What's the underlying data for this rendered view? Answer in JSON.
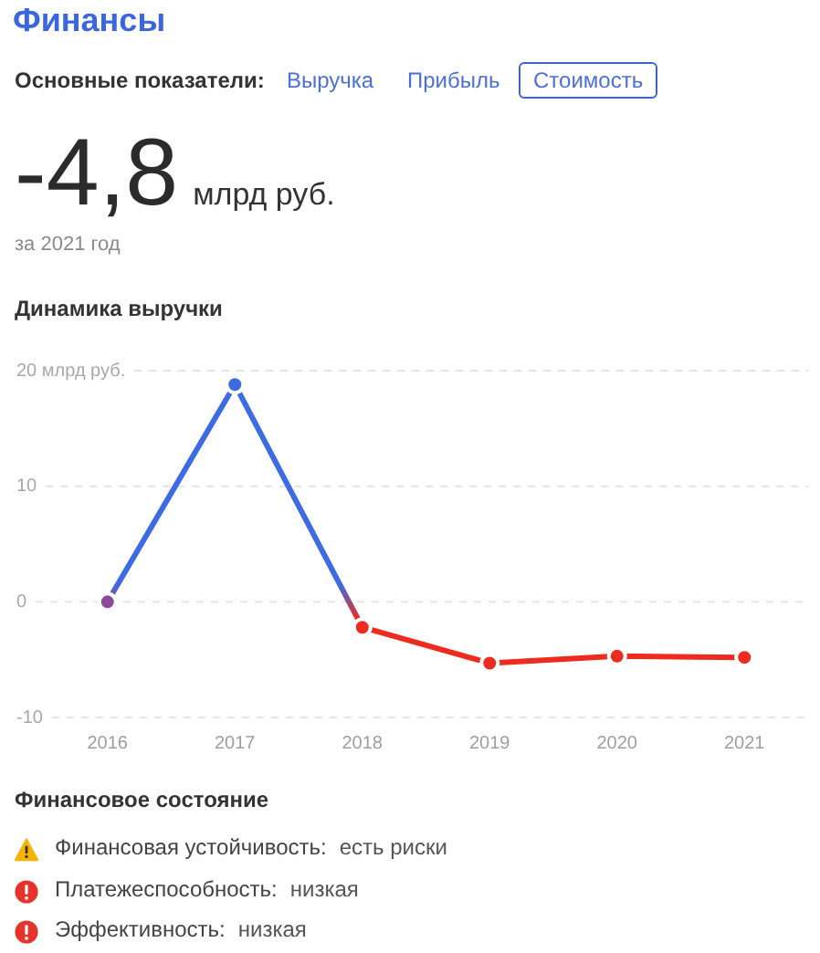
{
  "chart_data": {
    "type": "line",
    "title": "Динамика выручки",
    "categories": [
      "2016",
      "2017",
      "2018",
      "2019",
      "2020",
      "2021"
    ],
    "values": [
      0,
      18.8,
      -2.2,
      -5.3,
      -4.7,
      -4.8
    ],
    "colors": [
      "#8b4a9c",
      "#3d6be3",
      "#ee2b1f",
      "#ee2b1f",
      "#ee2b1f",
      "#ee2b1f"
    ],
    "ylim": [
      -10,
      20
    ],
    "yticks": [
      {
        "value": 20,
        "label": "20 млрд руб."
      },
      10,
      0,
      -10
    ],
    "grid": "y",
    "marker": "circle",
    "line_style": "solid",
    "annotations": [
      "Финансы",
      "Основные показатели:",
      "Выручка",
      "Прибыль",
      "Стоимость",
      "-4,8",
      "млрд руб.",
      "за 2021 год",
      "Финансовое состояние",
      "Финансовая устойчивость:",
      "есть риски",
      "Платежеспособность:",
      "низкая",
      "Эффективность:",
      "низкая"
    ]
  }
}
